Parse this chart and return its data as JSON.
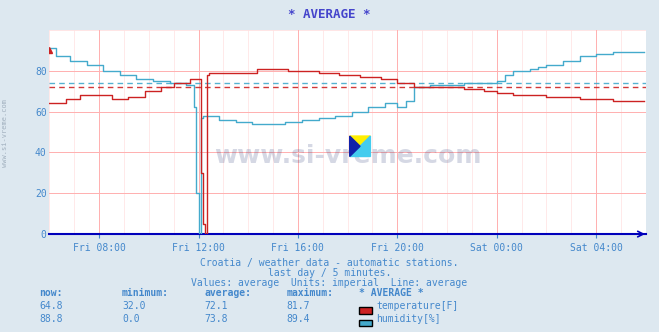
{
  "title": "* AVERAGE *",
  "title_color": "#4444cc",
  "bg_color": "#dde8f0",
  "plot_bg_color": "#ffffff",
  "grid_color": "#ffb0b0",
  "grid_color2": "#ffe0e0",
  "text_color": "#4488cc",
  "axis_color": "#0000bb",
  "ylim": [
    0,
    100
  ],
  "xlim": [
    0,
    288
  ],
  "yticks": [
    0,
    20,
    40,
    60,
    80
  ],
  "xtick_positions": [
    24,
    72,
    120,
    168,
    216,
    264
  ],
  "xtick_labels": [
    "Fri 08:00",
    "Fri 12:00",
    "Fri 16:00",
    "Fri 20:00",
    "Sat 00:00",
    "Sat 04:00"
  ],
  "avg_temperature": 72.1,
  "avg_humidity": 73.8,
  "temp_color": "#cc2222",
  "humidity_color": "#44aacc",
  "watermark": "www.si-vreme.com",
  "subtitle1": "Croatia / weather data - automatic stations.",
  "subtitle2": "last day / 5 minutes.",
  "subtitle3": "Values: average  Units: imperial  Line: average",
  "table_headers": [
    "now:",
    "minimum:",
    "average:",
    "maximum:",
    "* AVERAGE *"
  ],
  "table_row1": [
    "64.8",
    "32.0",
    "72.1",
    "81.7",
    "temperature[F]"
  ],
  "table_row2": [
    "88.8",
    "0.0",
    "73.8",
    "89.4",
    "humidity[%]"
  ],
  "left_label": "www.si-vreme.com"
}
